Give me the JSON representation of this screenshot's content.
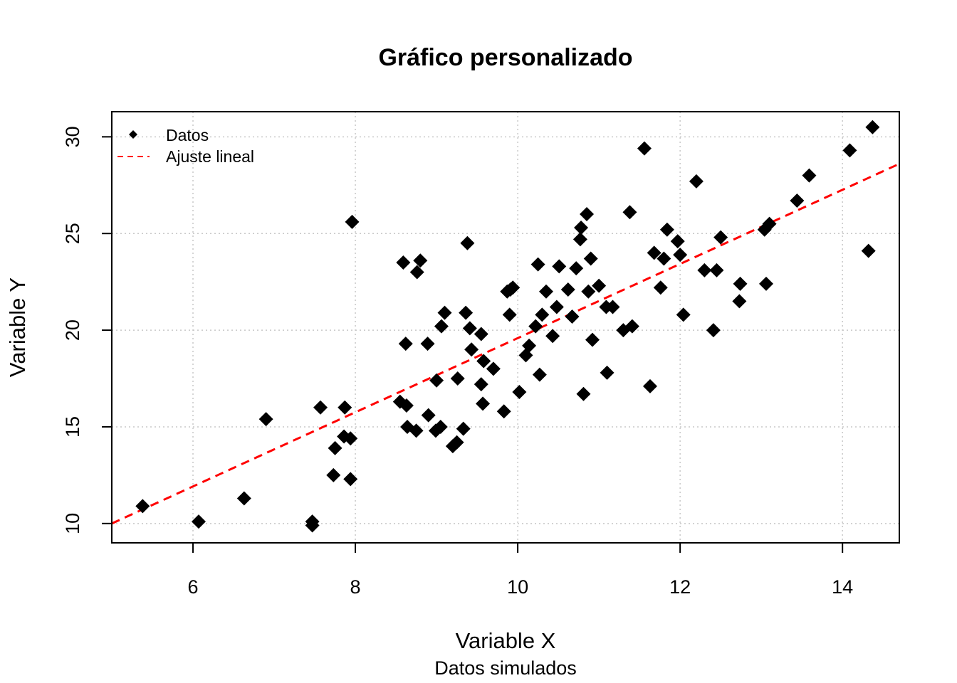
{
  "chart_data": {
    "type": "scatter",
    "title": "Gráfico personalizado",
    "xlabel": "Variable X",
    "ylabel": "Variable Y",
    "subtitle": "Datos simulados",
    "xlim": [
      5.0,
      14.7
    ],
    "ylim": [
      9.0,
      31.3
    ],
    "xticks": [
      6,
      8,
      10,
      12,
      14
    ],
    "yticks": [
      10,
      15,
      20,
      25,
      30
    ],
    "grid": true,
    "legend_position": "top-left",
    "series": [
      {
        "name": "Datos",
        "color": "#000000",
        "marker": "diamond",
        "points": [
          [
            5.38,
            10.9
          ],
          [
            6.07,
            10.1
          ],
          [
            6.63,
            11.3
          ],
          [
            6.9,
            15.4
          ],
          [
            7.47,
            10.1
          ],
          [
            7.47,
            9.9
          ],
          [
            7.57,
            16.0
          ],
          [
            7.73,
            12.5
          ],
          [
            7.75,
            13.9
          ],
          [
            7.86,
            14.5
          ],
          [
            7.87,
            16.0
          ],
          [
            7.94,
            14.4
          ],
          [
            7.94,
            12.3
          ],
          [
            7.96,
            25.6
          ],
          [
            8.55,
            16.3
          ],
          [
            8.59,
            23.5
          ],
          [
            8.62,
            19.3
          ],
          [
            8.63,
            16.1
          ],
          [
            8.64,
            15.0
          ],
          [
            8.75,
            14.8
          ],
          [
            8.76,
            23.0
          ],
          [
            8.8,
            23.6
          ],
          [
            8.89,
            19.3
          ],
          [
            8.9,
            15.6
          ],
          [
            8.99,
            14.8
          ],
          [
            9.0,
            17.4
          ],
          [
            9.05,
            15.0
          ],
          [
            9.06,
            20.2
          ],
          [
            9.1,
            20.9
          ],
          [
            9.2,
            14.0
          ],
          [
            9.25,
            14.2
          ],
          [
            9.26,
            17.5
          ],
          [
            9.33,
            14.9
          ],
          [
            9.36,
            20.9
          ],
          [
            9.38,
            24.5
          ],
          [
            9.41,
            20.1
          ],
          [
            9.43,
            19.0
          ],
          [
            9.55,
            19.8
          ],
          [
            9.55,
            17.2
          ],
          [
            9.57,
            16.2
          ],
          [
            9.58,
            18.4
          ],
          [
            9.7,
            18.0
          ],
          [
            9.83,
            15.8
          ],
          [
            9.87,
            22.0
          ],
          [
            9.9,
            20.8
          ],
          [
            9.91,
            22.1
          ],
          [
            9.94,
            22.2
          ],
          [
            10.02,
            16.8
          ],
          [
            10.1,
            18.7
          ],
          [
            10.14,
            19.2
          ],
          [
            10.22,
            20.2
          ],
          [
            10.25,
            23.4
          ],
          [
            10.27,
            17.7
          ],
          [
            10.3,
            20.8
          ],
          [
            10.35,
            22.0
          ],
          [
            10.43,
            19.7
          ],
          [
            10.48,
            21.2
          ],
          [
            10.51,
            23.3
          ],
          [
            10.62,
            22.1
          ],
          [
            10.67,
            20.7
          ],
          [
            10.72,
            23.2
          ],
          [
            10.77,
            24.7
          ],
          [
            10.78,
            25.3
          ],
          [
            10.81,
            16.7
          ],
          [
            10.85,
            26.0
          ],
          [
            10.87,
            22.0
          ],
          [
            10.9,
            23.7
          ],
          [
            10.92,
            19.5
          ],
          [
            11.0,
            22.3
          ],
          [
            11.09,
            21.2
          ],
          [
            11.1,
            17.8
          ],
          [
            11.17,
            21.2
          ],
          [
            11.3,
            20.0
          ],
          [
            11.38,
            26.1
          ],
          [
            11.41,
            20.2
          ],
          [
            11.56,
            29.4
          ],
          [
            11.63,
            17.1
          ],
          [
            11.68,
            24.0
          ],
          [
            11.76,
            22.2
          ],
          [
            11.8,
            23.7
          ],
          [
            11.84,
            25.2
          ],
          [
            11.97,
            24.6
          ],
          [
            12.0,
            23.9
          ],
          [
            12.04,
            20.8
          ],
          [
            12.2,
            27.7
          ],
          [
            12.3,
            23.1
          ],
          [
            12.41,
            20.0
          ],
          [
            12.45,
            23.1
          ],
          [
            12.5,
            24.8
          ],
          [
            12.73,
            21.5
          ],
          [
            12.74,
            22.4
          ],
          [
            13.04,
            25.2
          ],
          [
            13.06,
            22.4
          ],
          [
            13.1,
            25.5
          ],
          [
            13.44,
            26.7
          ],
          [
            13.59,
            28.0
          ],
          [
            14.09,
            29.3
          ],
          [
            14.32,
            24.1
          ],
          [
            14.37,
            30.5
          ]
        ]
      },
      {
        "name": "Ajuste lineal",
        "color": "#ff0000",
        "line_style": "dashed",
        "slope": 1.918,
        "intercept": 0.41
      }
    ]
  }
}
